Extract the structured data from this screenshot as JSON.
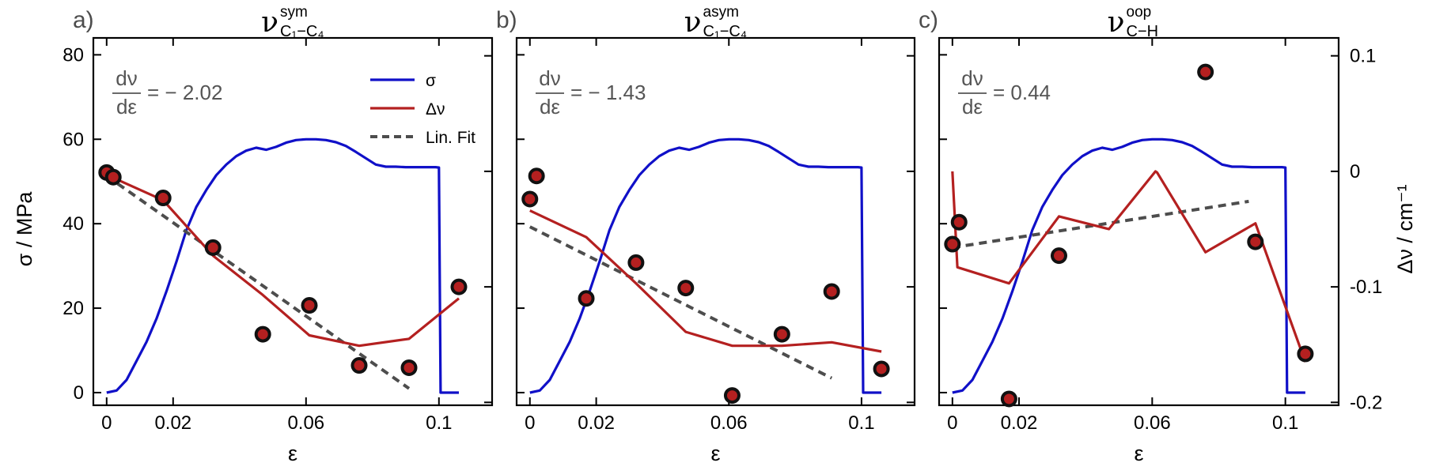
{
  "figure": {
    "y_left_label": "σ / MPa",
    "y_right_label": "Δν / cm⁻¹",
    "x_label": "ε",
    "x_ticks": [
      "0",
      "0.02",
      "0.06",
      "0.1"
    ],
    "y_left_ticks": [
      "0",
      "20",
      "40",
      "60",
      "80"
    ],
    "y_right_ticks": [
      "0.1",
      "0",
      "-0.1",
      "-0.2"
    ],
    "legend": [
      {
        "label": "σ",
        "color": "#1010c8",
        "style": "solid"
      },
      {
        "label": "Δν",
        "color": "#b42020",
        "style": "solid"
      },
      {
        "label": "Lin. Fit",
        "color": "#4d4d4d",
        "style": "dashed"
      }
    ]
  },
  "panels": [
    {
      "label": "a)",
      "title_base": "ν",
      "title_sup": "sym",
      "title_sub": "C₁−C₄",
      "slope_num": "dν",
      "slope_den": "dε",
      "slope_value": "= − 2.02"
    },
    {
      "label": "b)",
      "title_base": "ν",
      "title_sup": "asym",
      "title_sub": "C₁−C₄",
      "slope_num": "dν",
      "slope_den": "dε",
      "slope_value": "= − 1.43"
    },
    {
      "label": "c)",
      "title_base": "ν",
      "title_sup": "oop",
      "title_sub": "C−H",
      "slope_num": "dν",
      "slope_den": "dε",
      "slope_value": "= 0.44"
    }
  ],
  "chart_data": [
    {
      "type": "line",
      "title": "ν sym C1−C4",
      "xlabel": "ε",
      "ylabel": "σ / MPa",
      "y2label": "Δν / cm⁻¹",
      "xlim": [
        -0.004,
        0.116
      ],
      "ylim": [
        -3,
        84
      ],
      "y2lim": [
        -0.2025,
        0.1155
      ],
      "stress_curve": {
        "name": "σ",
        "x": [
          0,
          0.003,
          0.006,
          0.009,
          0.012,
          0.015,
          0.018,
          0.021,
          0.024,
          0.027,
          0.03,
          0.033,
          0.036,
          0.039,
          0.042,
          0.045,
          0.048,
          0.051,
          0.054,
          0.057,
          0.06,
          0.063,
          0.066,
          0.069,
          0.072,
          0.075,
          0.078,
          0.081,
          0.084,
          0.087,
          0.09,
          0.093,
          0.096,
          0.099,
          0.1,
          0.1005,
          0.101,
          0.106
        ],
        "y": [
          0,
          0.5,
          3,
          7.5,
          12,
          17.5,
          24,
          31,
          38.5,
          44,
          48,
          51.5,
          54,
          56,
          57.3,
          58,
          57.5,
          58.2,
          59.2,
          59.8,
          60,
          60,
          59.8,
          59.3,
          58.4,
          57,
          55.5,
          54,
          53.5,
          53.5,
          53.4,
          53.4,
          53.4,
          53.4,
          53.3,
          0,
          0,
          0
        ]
      },
      "shift_points": {
        "name": "Δν",
        "x": [
          0,
          0.002,
          0.017,
          0.032,
          0.047,
          0.061,
          0.076,
          0.091,
          0.106
        ],
        "y": [
          -0.001,
          -0.005,
          -0.023,
          -0.066,
          -0.141,
          -0.116,
          -0.168,
          -0.17,
          -0.1
        ]
      },
      "shift_line": {
        "name": "Δν",
        "x": [
          0,
          0.017,
          0.032,
          0.047,
          0.061,
          0.076,
          0.091,
          0.106
        ],
        "y": [
          -0.003,
          -0.025,
          -0.073,
          -0.107,
          -0.142,
          -0.151,
          -0.145,
          -0.11
        ]
      },
      "fit": {
        "name": "Lin. Fit",
        "x": [
          0,
          0.091
        ],
        "y": [
          -0.004,
          -0.188
        ]
      }
    },
    {
      "type": "line",
      "title": "ν asym C1−C4",
      "xlabel": "ε",
      "ylabel": "σ / MPa",
      "y2label": "Δν / cm⁻¹",
      "xlim": [
        -0.004,
        0.116
      ],
      "ylim": [
        -3,
        84
      ],
      "y2lim": [
        -0.2025,
        0.1155
      ],
      "stress_curve": {
        "name": "σ",
        "x": [
          0,
          0.003,
          0.006,
          0.009,
          0.012,
          0.015,
          0.018,
          0.021,
          0.024,
          0.027,
          0.03,
          0.033,
          0.036,
          0.039,
          0.042,
          0.045,
          0.048,
          0.051,
          0.054,
          0.057,
          0.06,
          0.063,
          0.066,
          0.069,
          0.072,
          0.075,
          0.078,
          0.081,
          0.084,
          0.087,
          0.09,
          0.093,
          0.096,
          0.099,
          0.1,
          0.1005,
          0.101,
          0.106
        ],
        "y": [
          0,
          0.5,
          3,
          7.5,
          12,
          17.5,
          24,
          31,
          38.5,
          44,
          48,
          51.5,
          54,
          56,
          57.3,
          58,
          57.5,
          58.2,
          59.2,
          59.8,
          60,
          60,
          59.8,
          59.3,
          58.4,
          57,
          55.5,
          54,
          53.5,
          53.5,
          53.4,
          53.4,
          53.4,
          53.4,
          53.3,
          0,
          0,
          0
        ]
      },
      "shift_points": {
        "name": "Δν",
        "x": [
          0,
          0.002,
          0.017,
          0.032,
          0.047,
          0.061,
          0.076,
          0.091,
          0.106
        ],
        "y": [
          -0.024,
          -0.004,
          -0.11,
          -0.079,
          -0.101,
          -0.194,
          -0.141,
          -0.104,
          -0.171
        ]
      },
      "shift_line": {
        "name": "Δν",
        "x": [
          0,
          0.017,
          0.032,
          0.047,
          0.061,
          0.076,
          0.091,
          0.106
        ],
        "y": [
          -0.034,
          -0.057,
          -0.097,
          -0.139,
          -0.151,
          -0.151,
          -0.148,
          -0.156
        ]
      },
      "fit": {
        "name": "Lin. Fit",
        "x": [
          0,
          0.091
        ],
        "y": [
          -0.048,
          -0.179
        ]
      }
    },
    {
      "type": "line",
      "title": "ν oop C−H",
      "xlabel": "ε",
      "ylabel": "σ / MPa",
      "y2label": "Δν / cm⁻¹",
      "xlim": [
        -0.004,
        0.116
      ],
      "ylim": [
        -3,
        84
      ],
      "y2lim": [
        -0.2025,
        0.1155
      ],
      "stress_curve": {
        "name": "σ",
        "x": [
          0,
          0.003,
          0.006,
          0.009,
          0.012,
          0.015,
          0.018,
          0.021,
          0.024,
          0.027,
          0.03,
          0.033,
          0.036,
          0.039,
          0.042,
          0.045,
          0.048,
          0.051,
          0.054,
          0.057,
          0.06,
          0.063,
          0.066,
          0.069,
          0.072,
          0.075,
          0.078,
          0.081,
          0.084,
          0.087,
          0.09,
          0.093,
          0.096,
          0.099,
          0.1,
          0.1005,
          0.101,
          0.106
        ],
        "y": [
          0,
          0.5,
          3,
          7.5,
          12,
          17.5,
          24,
          31,
          38.5,
          44,
          48,
          51.5,
          54,
          56,
          57.3,
          58,
          57.5,
          58.2,
          59.2,
          59.8,
          60,
          60,
          59.8,
          59.3,
          58.4,
          57,
          55.5,
          54,
          53.5,
          53.5,
          53.4,
          53.4,
          53.4,
          53.4,
          53.3,
          0,
          0,
          0
        ]
      },
      "shift_points": {
        "name": "Δν",
        "x": [
          0,
          0.002,
          0.017,
          0.032,
          0.076,
          0.091,
          0.106
        ],
        "y": [
          -0.063,
          -0.044,
          -0.197,
          -0.073,
          0.086,
          -0.061,
          -0.158
        ]
      },
      "shift_line": {
        "name": "Δν",
        "x": [
          0,
          0.0015,
          0.017,
          0.032,
          0.047,
          0.061,
          0.0615,
          0.076,
          0.091,
          0.106
        ],
        "y": [
          0,
          -0.083,
          -0.097,
          -0.039,
          -0.05,
          0.0,
          -0.001,
          -0.07,
          -0.045,
          -0.165
        ]
      },
      "fit": {
        "name": "Lin. Fit",
        "x": [
          0,
          0.089
        ],
        "y": [
          -0.066,
          -0.026
        ]
      }
    }
  ]
}
